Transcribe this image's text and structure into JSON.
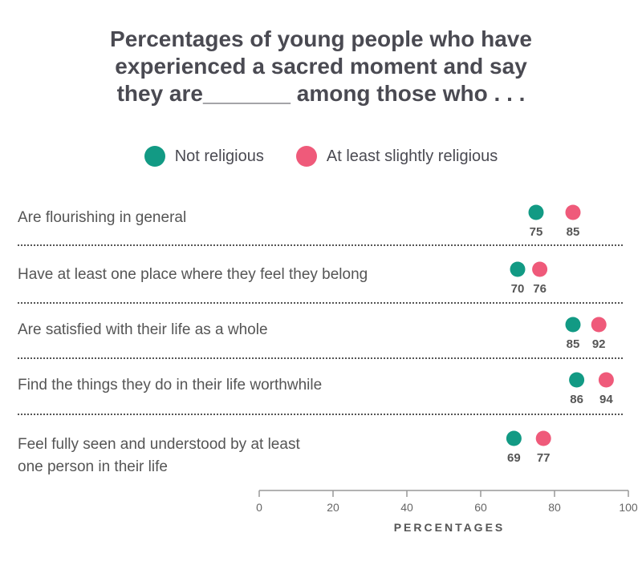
{
  "chart_data": {
    "type": "dot",
    "title": "Percentages of young people who have experienced a sacred moment and say they are_______ among those who . . .",
    "title_lines": [
      "Percentages of young people who have",
      "experienced a sacred moment and say",
      "they are_______ among those who . . ."
    ],
    "xlabel": "PERCENTAGES",
    "xlim": [
      0,
      100
    ],
    "xticks": [
      0,
      20,
      40,
      60,
      80,
      100
    ],
    "legend_placement": "top",
    "categories": [
      [
        "Are flourishing in general"
      ],
      [
        "Have at least one place where they feel they belong"
      ],
      [
        "Are satisfied with their life as a whole"
      ],
      [
        "Find the things they do in their life worthwhile"
      ],
      [
        "Feel fully seen and understood by at least",
        "one person in their life"
      ]
    ],
    "series": [
      {
        "name": "Not religious",
        "color": "#129a84",
        "values": [
          75,
          70,
          85,
          86,
          69
        ]
      },
      {
        "name": "At least slightly religious",
        "color": "#ef5a7a",
        "values": [
          85,
          76,
          92,
          94,
          77
        ]
      }
    ]
  }
}
